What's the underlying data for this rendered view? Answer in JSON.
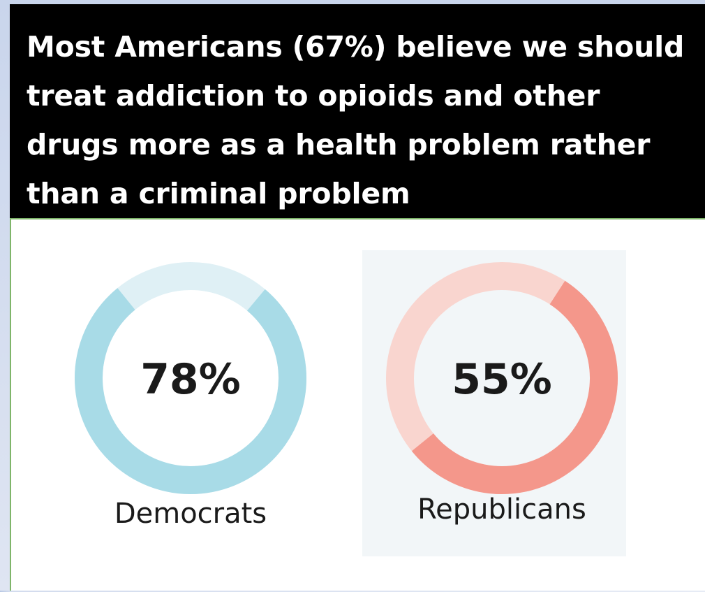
{
  "header": {
    "title": "Most Americans (67%) believe we should treat addiction to opioids and other drugs more as a health problem rather than a criminal problem"
  },
  "colors": {
    "header_bg": "#000000",
    "header_text": "#ffffff",
    "democrat_filled": "#a8dbe7",
    "democrat_track": "#dff0f5",
    "republican_filled": "#f4978b",
    "republican_track": "#f9d5cf"
  },
  "chart_data": [
    {
      "type": "pie",
      "label": "78%",
      "caption": "Democrats",
      "value": 78,
      "max": 100
    },
    {
      "type": "pie",
      "label": "55%",
      "caption": "Republicans",
      "value": 55,
      "max": 100
    }
  ]
}
